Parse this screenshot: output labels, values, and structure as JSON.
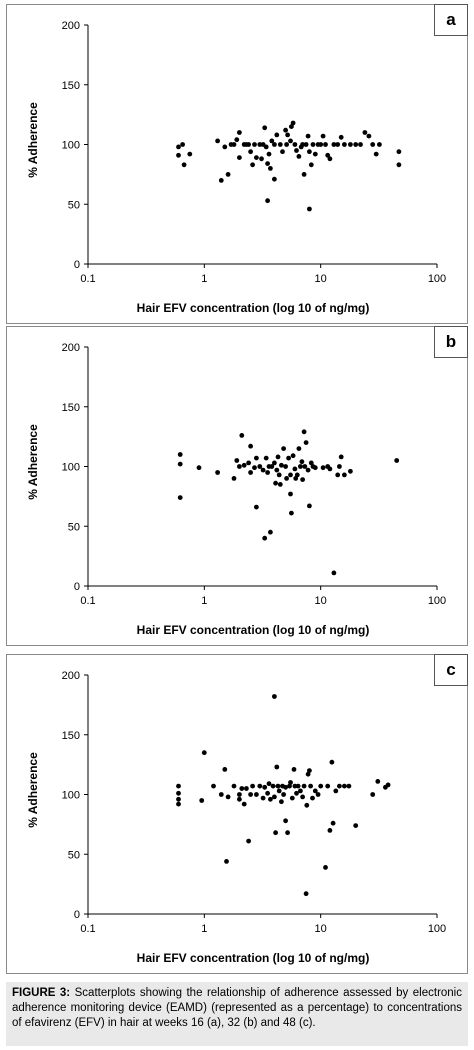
{
  "caption": {
    "label": "FIGURE 3:",
    "text": "Scatterplots showing the relationship of adherence assessed by electronic adherence monitoring device (EAMD) (represented as a percentage) to concentrations of efavirenz (EFV) in hair at weeks 16 (a), 32 (b) and 48 (c)."
  },
  "chart_data": [
    {
      "panel": "a",
      "type": "scatter",
      "xlabel": "Hair EFV concentration (log 10 of ng/mg)",
      "ylabel": "% Adherence",
      "xscale": "log",
      "xlim": [
        0.1,
        100
      ],
      "ylim": [
        0,
        200
      ],
      "xticks": [
        "0.1",
        "1",
        "10",
        "100"
      ],
      "yticks": [
        "0",
        "50",
        "100",
        "150",
        "200"
      ],
      "points": [
        [
          0.6,
          98
        ],
        [
          0.6,
          91
        ],
        [
          0.65,
          100
        ],
        [
          0.67,
          83
        ],
        [
          0.75,
          92
        ],
        [
          1.3,
          103
        ],
        [
          1.4,
          70
        ],
        [
          1.5,
          98
        ],
        [
          1.6,
          75
        ],
        [
          1.7,
          100
        ],
        [
          1.8,
          100
        ],
        [
          1.9,
          104
        ],
        [
          2.0,
          110
        ],
        [
          2.0,
          89
        ],
        [
          2.2,
          100
        ],
        [
          2.3,
          100
        ],
        [
          2.4,
          100
        ],
        [
          2.5,
          94
        ],
        [
          2.6,
          83
        ],
        [
          2.7,
          100
        ],
        [
          2.8,
          89
        ],
        [
          3.0,
          100
        ],
        [
          3.1,
          88
        ],
        [
          3.2,
          100
        ],
        [
          3.3,
          114
        ],
        [
          3.4,
          98
        ],
        [
          3.5,
          84
        ],
        [
          3.6,
          92
        ],
        [
          3.7,
          80
        ],
        [
          3.5,
          53
        ],
        [
          3.8,
          103
        ],
        [
          4.0,
          100
        ],
        [
          4.0,
          71
        ],
        [
          4.2,
          108
        ],
        [
          4.5,
          100
        ],
        [
          4.7,
          94
        ],
        [
          5.0,
          112
        ],
        [
          5.1,
          100
        ],
        [
          5.2,
          108
        ],
        [
          5.5,
          103
        ],
        [
          5.6,
          115
        ],
        [
          5.8,
          118
        ],
        [
          6.0,
          100
        ],
        [
          6.2,
          95
        ],
        [
          6.5,
          90
        ],
        [
          6.8,
          98
        ],
        [
          7.0,
          100
        ],
        [
          7.2,
          75
        ],
        [
          7.5,
          100
        ],
        [
          7.8,
          107
        ],
        [
          8.0,
          94
        ],
        [
          8.0,
          46
        ],
        [
          8.3,
          83
        ],
        [
          8.6,
          100
        ],
        [
          9.0,
          92
        ],
        [
          9.5,
          100
        ],
        [
          10.0,
          100
        ],
        [
          10.5,
          107
        ],
        [
          11.0,
          100
        ],
        [
          11.5,
          91
        ],
        [
          12.0,
          88
        ],
        [
          13.0,
          100
        ],
        [
          14.0,
          100
        ],
        [
          15.0,
          106
        ],
        [
          16.0,
          100
        ],
        [
          18.0,
          100
        ],
        [
          20.0,
          100
        ],
        [
          22.0,
          100
        ],
        [
          24.0,
          110
        ],
        [
          26.0,
          107
        ],
        [
          28.0,
          100
        ],
        [
          30.0,
          92
        ],
        [
          32.0,
          100
        ],
        [
          47.0,
          94
        ],
        [
          47.0,
          83
        ]
      ]
    },
    {
      "panel": "b",
      "type": "scatter",
      "xlabel": "Hair EFV concentration (log 10 of ng/mg)",
      "ylabel": "% Adherence",
      "xscale": "log",
      "xlim": [
        0.1,
        100
      ],
      "ylim": [
        0,
        200
      ],
      "xticks": [
        "0.1",
        "1",
        "10",
        "100"
      ],
      "yticks": [
        "0",
        "50",
        "100",
        "150",
        "200"
      ],
      "points": [
        [
          0.62,
          110
        ],
        [
          0.62,
          102
        ],
        [
          0.62,
          74
        ],
        [
          0.9,
          99
        ],
        [
          1.3,
          95
        ],
        [
          1.8,
          90
        ],
        [
          1.9,
          105
        ],
        [
          2.0,
          100
        ],
        [
          2.1,
          126
        ],
        [
          2.2,
          101
        ],
        [
          2.4,
          103
        ],
        [
          2.5,
          117
        ],
        [
          2.5,
          95
        ],
        [
          2.7,
          99
        ],
        [
          2.8,
          107
        ],
        [
          2.8,
          66
        ],
        [
          3.0,
          100
        ],
        [
          3.2,
          97
        ],
        [
          3.3,
          40
        ],
        [
          3.4,
          107
        ],
        [
          3.5,
          95
        ],
        [
          3.6,
          100
        ],
        [
          3.7,
          45
        ],
        [
          3.8,
          100
        ],
        [
          4.0,
          103
        ],
        [
          4.1,
          86
        ],
        [
          4.2,
          97
        ],
        [
          4.3,
          108
        ],
        [
          4.4,
          93
        ],
        [
          4.5,
          85
        ],
        [
          4.6,
          101
        ],
        [
          4.8,
          115
        ],
        [
          5.0,
          100
        ],
        [
          5.1,
          90
        ],
        [
          5.3,
          107
        ],
        [
          5.5,
          93
        ],
        [
          5.5,
          77
        ],
        [
          5.6,
          61
        ],
        [
          5.8,
          109
        ],
        [
          6.0,
          98
        ],
        [
          6.1,
          90
        ],
        [
          6.3,
          93
        ],
        [
          6.5,
          115
        ],
        [
          6.7,
          100
        ],
        [
          6.9,
          104
        ],
        [
          7.0,
          89
        ],
        [
          7.2,
          129
        ],
        [
          7.3,
          100
        ],
        [
          7.5,
          120
        ],
        [
          7.8,
          97
        ],
        [
          8.0,
          67
        ],
        [
          8.3,
          103
        ],
        [
          8.6,
          100
        ],
        [
          9.0,
          99
        ],
        [
          10.5,
          99
        ],
        [
          11.5,
          100
        ],
        [
          12.0,
          98
        ],
        [
          13.0,
          11
        ],
        [
          14.0,
          93
        ],
        [
          14.5,
          100
        ],
        [
          15.0,
          108
        ],
        [
          16.0,
          93
        ],
        [
          18.0,
          96
        ],
        [
          45.0,
          105
        ]
      ]
    },
    {
      "panel": "c",
      "type": "scatter",
      "xlabel": "Hair EFV concentration (log 10 of ng/mg)",
      "ylabel": "% Adherence",
      "xscale": "log",
      "xlim": [
        0.1,
        100
      ],
      "ylim": [
        0,
        200
      ],
      "xticks": [
        "0.1",
        "1",
        "10",
        "100"
      ],
      "yticks": [
        "0",
        "50",
        "100",
        "150",
        "200"
      ],
      "points": [
        [
          0.6,
          107
        ],
        [
          0.6,
          101
        ],
        [
          0.6,
          96
        ],
        [
          0.6,
          92
        ],
        [
          0.95,
          95
        ],
        [
          1.0,
          135
        ],
        [
          1.2,
          107
        ],
        [
          1.4,
          100
        ],
        [
          1.5,
          121
        ],
        [
          1.55,
          44
        ],
        [
          1.6,
          98
        ],
        [
          1.8,
          107
        ],
        [
          2.0,
          100
        ],
        [
          2.0,
          96
        ],
        [
          2.1,
          105
        ],
        [
          2.2,
          92
        ],
        [
          2.3,
          105
        ],
        [
          2.4,
          61
        ],
        [
          2.5,
          100
        ],
        [
          2.6,
          107
        ],
        [
          2.8,
          100
        ],
        [
          3.0,
          107
        ],
        [
          3.2,
          97
        ],
        [
          3.3,
          106
        ],
        [
          3.5,
          101
        ],
        [
          3.6,
          109
        ],
        [
          3.7,
          96
        ],
        [
          3.9,
          107
        ],
        [
          4.0,
          182
        ],
        [
          4.0,
          98
        ],
        [
          4.1,
          68
        ],
        [
          4.2,
          123
        ],
        [
          4.3,
          107
        ],
        [
          4.4,
          103
        ],
        [
          4.6,
          94
        ],
        [
          4.7,
          107
        ],
        [
          4.8,
          100
        ],
        [
          5.0,
          106
        ],
        [
          5.0,
          78
        ],
        [
          5.2,
          68
        ],
        [
          5.4,
          107
        ],
        [
          5.5,
          110
        ],
        [
          5.7,
          97
        ],
        [
          5.9,
          121
        ],
        [
          6.0,
          107
        ],
        [
          6.2,
          101
        ],
        [
          6.4,
          107
        ],
        [
          6.7,
          103
        ],
        [
          7.0,
          98
        ],
        [
          7.2,
          107
        ],
        [
          7.5,
          17
        ],
        [
          7.6,
          91
        ],
        [
          7.8,
          117
        ],
        [
          8.0,
          120
        ],
        [
          8.2,
          107
        ],
        [
          8.5,
          97
        ],
        [
          9.0,
          103
        ],
        [
          9.5,
          100
        ],
        [
          10.0,
          107
        ],
        [
          11.0,
          39
        ],
        [
          11.5,
          107
        ],
        [
          12.0,
          70
        ],
        [
          12.5,
          127
        ],
        [
          12.8,
          76
        ],
        [
          13.5,
          103
        ],
        [
          14.5,
          107
        ],
        [
          16.0,
          107
        ],
        [
          17.5,
          107
        ],
        [
          20.0,
          74
        ],
        [
          28.0,
          100
        ],
        [
          31.0,
          111
        ],
        [
          36.0,
          106
        ],
        [
          38.0,
          108
        ]
      ]
    }
  ]
}
